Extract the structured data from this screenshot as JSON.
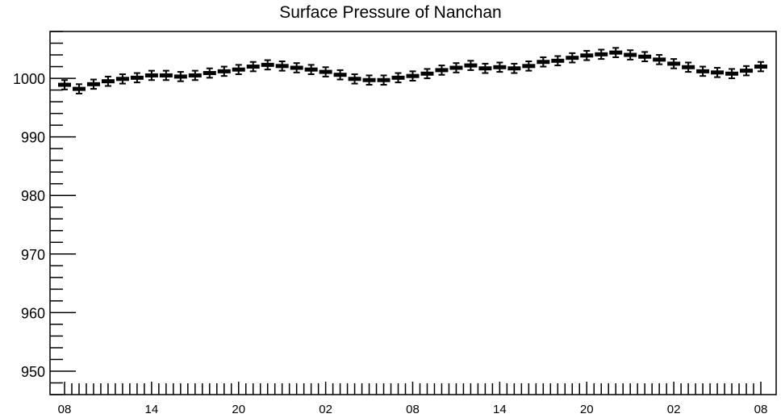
{
  "chart_data": {
    "type": "scatter",
    "title": "Surface Pressure of Nanchan",
    "xlabel": "",
    "ylabel": "",
    "ylim": [
      946,
      1008
    ],
    "yticks": [
      950,
      960,
      970,
      980,
      990,
      1000
    ],
    "xtick_labels": [
      "08",
      "14",
      "20",
      "02",
      "08",
      "14",
      "20",
      "02",
      "08"
    ],
    "grid": false,
    "legend": "none",
    "marker_color": "#000000",
    "series": [
      {
        "values": [
          998.9,
          998.2,
          999.0,
          999.5,
          999.9,
          1000.1,
          1000.5,
          1000.5,
          1000.3,
          1000.5,
          1000.9,
          1001.2,
          1001.5,
          1002.0,
          1002.3,
          1002.1,
          1001.8,
          1001.5,
          1001.1,
          1000.6,
          999.9,
          999.7,
          999.7,
          1000.1,
          1000.4,
          1000.8,
          1001.4,
          1001.8,
          1002.2,
          1001.7,
          1001.9,
          1001.7,
          1002.1,
          1002.8,
          1003.0,
          1003.5,
          1003.9,
          1004.1,
          1004.4,
          1004.0,
          1003.7,
          1003.2,
          1002.5,
          1001.9,
          1001.2,
          1001.0,
          1000.8,
          1001.3,
          1002.0
        ],
        "error": 0.8
      }
    ]
  }
}
